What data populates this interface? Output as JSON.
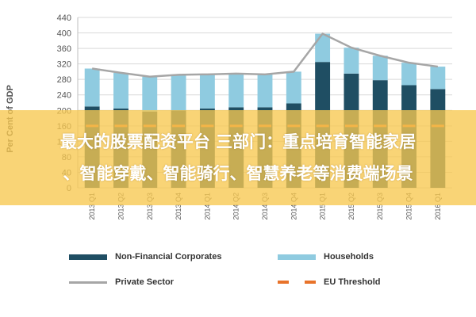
{
  "chart_data": {
    "type": "bar",
    "ylabel": "Per Cent of GDP",
    "ylim": [
      0,
      440
    ],
    "yticks": [
      0,
      40,
      80,
      120,
      160,
      200,
      240,
      280,
      320,
      360,
      400,
      440
    ],
    "grid": true,
    "categories": [
      "2013 Q1",
      "2013 Q2",
      "2013 Q3",
      "2013 Q4",
      "2014 Q1",
      "2014 Q2",
      "2014 Q3",
      "2014 Q4",
      "2015 Q1",
      "2015 Q2",
      "2015 Q3",
      "2015 Q4",
      "2016 Q1"
    ],
    "series": [
      {
        "name": "Non-Financial Corporates",
        "kind": "bar",
        "color": "#1f4e63",
        "values": [
          210,
          205,
          197,
          200,
          205,
          208,
          208,
          218,
          325,
          295,
          278,
          265,
          255
        ]
      },
      {
        "name": "Households",
        "kind": "bar",
        "color": "#8fcbe0",
        "values": [
          98,
          92,
          90,
          92,
          88,
          87,
          85,
          82,
          73,
          67,
          63,
          58,
          58
        ]
      },
      {
        "name": "Private Sector",
        "kind": "line",
        "color": "#a6a6a6",
        "values": [
          308,
          297,
          287,
          292,
          293,
          295,
          293,
          300,
          398,
          362,
          341,
          323,
          313
        ]
      },
      {
        "name": "EU Threshold",
        "kind": "dashed",
        "color": "#e8732a",
        "values": [
          160,
          160,
          160,
          160,
          160,
          160,
          160,
          160,
          160,
          160,
          160,
          160,
          160
        ]
      }
    ],
    "legend": "bottom"
  },
  "banner": {
    "line1": "最大的股票配资平台 三部门：重点培育智能家居",
    "line2": "、智能穿戴、智能骑行、智慧养老等消费端场景"
  }
}
